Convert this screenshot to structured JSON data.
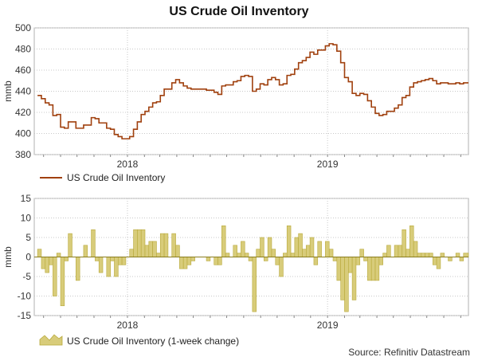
{
  "title": "US Crude Oil Inventory",
  "source": "Source: Refinitiv Datastream",
  "colors": {
    "line": "#a0400e",
    "bar_fill": "#d8cc7a",
    "bar_stroke": "#b8a93a",
    "grid": "#c8c8c8",
    "frame": "#b0b0b0"
  },
  "chart_data": [
    {
      "type": "line",
      "ylabel": "mmb",
      "ylim": [
        380,
        500
      ],
      "yticks": [
        380,
        400,
        420,
        440,
        460,
        480,
        500
      ],
      "xtick_labels": [
        "2018",
        "2019"
      ],
      "xlim": [
        "2017-07-15",
        "2019-09-15"
      ],
      "grid": true,
      "legend": "bottom-left",
      "series": [
        {
          "name": "US Crude Oil Inventory",
          "x": [
            "2017-07-21",
            "2017-07-28",
            "2017-08-04",
            "2017-08-11",
            "2017-08-18",
            "2017-08-25",
            "2017-09-01",
            "2017-09-08",
            "2017-09-15",
            "2017-09-22",
            "2017-09-29",
            "2017-10-06",
            "2017-10-13",
            "2017-10-20",
            "2017-10-27",
            "2017-11-03",
            "2017-11-10",
            "2017-11-17",
            "2017-11-24",
            "2017-12-01",
            "2017-12-08",
            "2017-12-15",
            "2017-12-22",
            "2017-12-29",
            "2018-01-05",
            "2018-01-12",
            "2018-01-19",
            "2018-01-26",
            "2018-02-02",
            "2018-02-09",
            "2018-02-16",
            "2018-02-23",
            "2018-03-02",
            "2018-03-09",
            "2018-03-16",
            "2018-03-23",
            "2018-03-30",
            "2018-04-06",
            "2018-04-13",
            "2018-04-20",
            "2018-04-27",
            "2018-05-04",
            "2018-05-11",
            "2018-05-18",
            "2018-05-25",
            "2018-06-01",
            "2018-06-08",
            "2018-06-15",
            "2018-06-22",
            "2018-06-29",
            "2018-07-06",
            "2018-07-13",
            "2018-07-20",
            "2018-07-27",
            "2018-08-03",
            "2018-08-10",
            "2018-08-17",
            "2018-08-24",
            "2018-08-31",
            "2018-09-07",
            "2018-09-14",
            "2018-09-21",
            "2018-09-28",
            "2018-10-05",
            "2018-10-12",
            "2018-10-19",
            "2018-10-26",
            "2018-11-02",
            "2018-11-09",
            "2018-11-16",
            "2018-11-23",
            "2018-11-30",
            "2018-12-07",
            "2018-12-14",
            "2018-12-21",
            "2018-12-28",
            "2019-01-04",
            "2019-01-11",
            "2019-01-18",
            "2019-01-25",
            "2019-02-01",
            "2019-02-08",
            "2019-02-15",
            "2019-02-22",
            "2019-03-01",
            "2019-03-08",
            "2019-03-15",
            "2019-03-22",
            "2019-03-29",
            "2019-04-05",
            "2019-04-12",
            "2019-04-19",
            "2019-04-26",
            "2019-05-03",
            "2019-05-10",
            "2019-05-17",
            "2019-05-24",
            "2019-05-31",
            "2019-06-07",
            "2019-06-14",
            "2019-06-21",
            "2019-06-28",
            "2019-07-05",
            "2019-07-12",
            "2019-07-19",
            "2019-07-26",
            "2019-08-02",
            "2019-08-09",
            "2019-08-16",
            "2019-08-23",
            "2019-08-30",
            "2019-09-06"
          ],
          "values": [
            436,
            433,
            429,
            427,
            417,
            418,
            406,
            405,
            411,
            411,
            405,
            405,
            408,
            408,
            415,
            414,
            410,
            410,
            405,
            404,
            399,
            397,
            395,
            395,
            397,
            404,
            411,
            418,
            421,
            425,
            429,
            430,
            436,
            442,
            442,
            448,
            451,
            448,
            445,
            443,
            442,
            442,
            442,
            442,
            441,
            441,
            439,
            437,
            445,
            446,
            446,
            449,
            450,
            454,
            455,
            454,
            440,
            442,
            447,
            446,
            451,
            453,
            451,
            446,
            447,
            455,
            456,
            461,
            467,
            469,
            472,
            477,
            475,
            479,
            479,
            483,
            485,
            484,
            478,
            467,
            453,
            449,
            438,
            436,
            438,
            437,
            431,
            425,
            419,
            417,
            418,
            421,
            421,
            424,
            427,
            434,
            436,
            444,
            448,
            449,
            450,
            451,
            452,
            450,
            447,
            448,
            448,
            447,
            447,
            448,
            447,
            448
          ],
          "color": "#a0400e"
        }
      ]
    },
    {
      "type": "bar",
      "ylabel": "mmb",
      "ylim": [
        -15,
        15
      ],
      "yticks": [
        -15,
        -10,
        -5,
        0,
        5,
        10,
        15
      ],
      "xtick_labels": [
        "2018",
        "2019"
      ],
      "grid": true,
      "legend": "bottom-left",
      "series": [
        {
          "name": "US Crude Oil Inventory (1-week change)",
          "values": [
            2,
            -3,
            -4,
            -2,
            -10,
            1,
            -12.5,
            -1,
            6,
            0,
            -6,
            0,
            3,
            0,
            7,
            -1,
            -4,
            0,
            -5,
            -1,
            -5,
            -2,
            -2,
            0,
            2,
            7,
            7,
            7,
            3,
            4,
            4,
            1,
            6,
            6,
            0,
            6,
            3,
            -3,
            -3,
            -2,
            -1,
            0,
            0,
            0,
            -1,
            0,
            -2,
            -2,
            8,
            1,
            0,
            3,
            1,
            4,
            1,
            -1,
            -14,
            2,
            5,
            -1,
            5,
            2,
            -2,
            -5,
            1,
            8,
            1,
            5,
            6,
            2,
            3,
            5,
            -2,
            4,
            0,
            4,
            2,
            -1,
            -6,
            -11,
            -14,
            -4,
            -11,
            -2,
            2,
            -1,
            -6,
            -6,
            -6,
            -2,
            1,
            3,
            0,
            3,
            3,
            7,
            2,
            8,
            4,
            1,
            1,
            1,
            1,
            -2,
            -3,
            1,
            0,
            -1,
            0,
            1,
            -1,
            1
          ],
          "color": "#d8cc7a"
        }
      ]
    }
  ]
}
